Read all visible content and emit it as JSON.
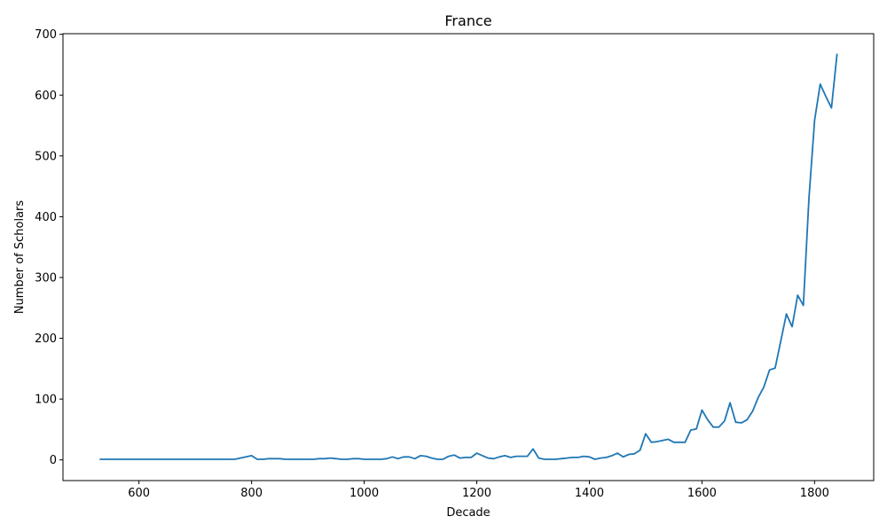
{
  "chart_data": {
    "type": "line",
    "title": "France",
    "xlabel": "Decade",
    "ylabel": "Number of Scholars",
    "xlim": [
      465,
      1905
    ],
    "ylim": [
      -34,
      701
    ],
    "xticks": [
      600,
      800,
      1000,
      1200,
      1400,
      1600,
      1800
    ],
    "yticks": [
      0,
      100,
      200,
      300,
      400,
      500,
      600,
      700
    ],
    "grid": false,
    "series": [
      {
        "color": "#1f77b4",
        "x": [
          530,
          540,
          550,
          560,
          570,
          580,
          590,
          600,
          610,
          620,
          630,
          640,
          650,
          660,
          670,
          680,
          690,
          700,
          710,
          720,
          730,
          740,
          750,
          760,
          770,
          780,
          790,
          800,
          810,
          820,
          830,
          840,
          850,
          860,
          870,
          880,
          890,
          900,
          910,
          920,
          930,
          940,
          950,
          960,
          970,
          980,
          990,
          1000,
          1010,
          1020,
          1030,
          1040,
          1050,
          1060,
          1070,
          1080,
          1090,
          1100,
          1110,
          1120,
          1130,
          1140,
          1150,
          1160,
          1170,
          1180,
          1190,
          1200,
          1210,
          1220,
          1230,
          1240,
          1250,
          1260,
          1270,
          1280,
          1290,
          1300,
          1310,
          1320,
          1330,
          1340,
          1350,
          1360,
          1370,
          1380,
          1390,
          1400,
          1410,
          1420,
          1430,
          1440,
          1450,
          1460,
          1470,
          1480,
          1490,
          1500,
          1510,
          1520,
          1530,
          1540,
          1550,
          1560,
          1570,
          1580,
          1590,
          1600,
          1610,
          1620,
          1630,
          1640,
          1650,
          1660,
          1670,
          1680,
          1690,
          1700,
          1710,
          1720,
          1730,
          1740,
          1750,
          1760,
          1770,
          1780,
          1790,
          1800,
          1810,
          1820,
          1830,
          1840
        ],
        "y": [
          1,
          1,
          1,
          1,
          1,
          1,
          1,
          1,
          1,
          1,
          1,
          1,
          1,
          1,
          1,
          1,
          1,
          1,
          1,
          1,
          1,
          1,
          1,
          1,
          1,
          3,
          5,
          7,
          1,
          1,
          2,
          2,
          2,
          1,
          1,
          1,
          1,
          1,
          1,
          2,
          2,
          3,
          2,
          1,
          1,
          2,
          2,
          1,
          1,
          1,
          1,
          2,
          5,
          2,
          5,
          5,
          2,
          7,
          6,
          3,
          1,
          1,
          6,
          8,
          3,
          4,
          4,
          11,
          7,
          3,
          2,
          5,
          7,
          4,
          6,
          6,
          6,
          18,
          3,
          1,
          1,
          1,
          2,
          3,
          4,
          4,
          6,
          5,
          1,
          3,
          4,
          7,
          11,
          5,
          9,
          10,
          16,
          43,
          29,
          30,
          32,
          34,
          29,
          29,
          29,
          49,
          51,
          82,
          66,
          54,
          54,
          64,
          94,
          62,
          61,
          66,
          80,
          103,
          120,
          148,
          151,
          196,
          240,
          219,
          271,
          254,
          430,
          559,
          618,
          598,
          579,
          668
        ]
      }
    ]
  }
}
